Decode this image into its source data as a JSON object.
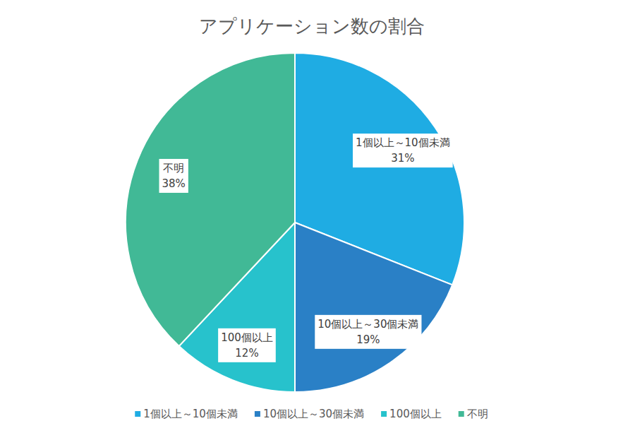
{
  "chart_data": {
    "type": "pie",
    "title": "アプリケーション数の割合",
    "categories": [
      "1個以上～10個未満",
      "10個以上～30個未満",
      "100個以上",
      "不明"
    ],
    "values": [
      31,
      19,
      12,
      38
    ],
    "value_labels": [
      "31%",
      "19%",
      "12%",
      "38%"
    ],
    "colors": [
      "#1FACE3",
      "#2A80C6",
      "#27C2CC",
      "#41B996"
    ],
    "data_labels": true,
    "legend": "bottom"
  }
}
